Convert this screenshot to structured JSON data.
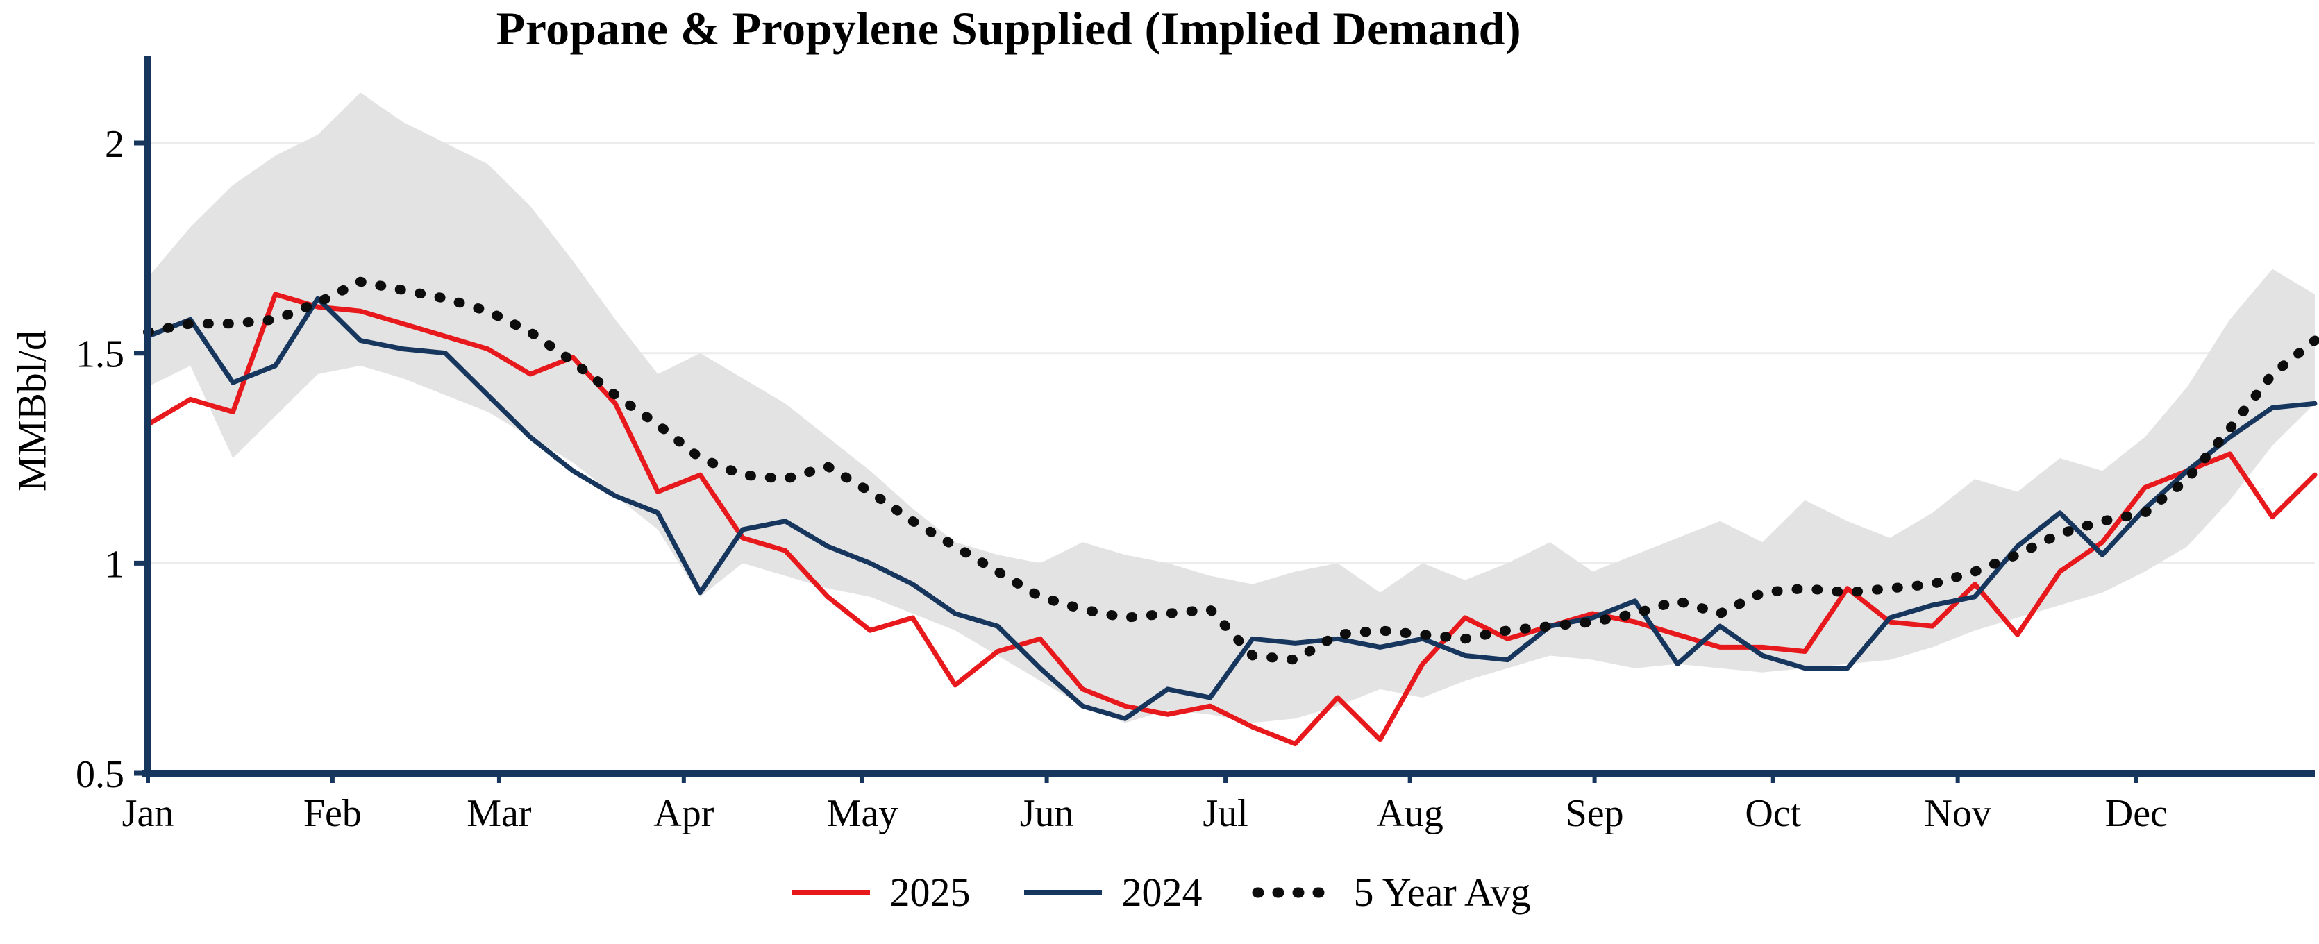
{
  "chart_data": {
    "type": "line",
    "title": "Propane & Propylene Supplied (Implied Demand)",
    "ylabel": "MMBbl/d",
    "xlabel": "",
    "ylim": [
      0.5,
      2.2
    ],
    "yticks": [
      0.5,
      1,
      1.5,
      2
    ],
    "ytick_labels": [
      "0.5",
      "1",
      "1.5",
      "2"
    ],
    "grid": true,
    "legend_position": "bottom-center",
    "axis_color": "#17365d",
    "x_unit": "week",
    "n_points": 52,
    "months": [
      "Jan",
      "Feb",
      "Mar",
      "Apr",
      "May",
      "Jun",
      "Jul",
      "Aug",
      "Sep",
      "Oct",
      "Nov",
      "Dec"
    ],
    "month_fractions": [
      0,
      0.0852,
      0.1621,
      0.2473,
      0.3297,
      0.4148,
      0.4973,
      0.5824,
      0.6676,
      0.75,
      0.8352,
      0.9176
    ],
    "band": {
      "color": "#e3e3e3",
      "upper": [
        1.68,
        1.8,
        1.9,
        1.97,
        2.02,
        2.12,
        2.05,
        2.0,
        1.95,
        1.85,
        1.72,
        1.58,
        1.45,
        1.5,
        1.44,
        1.38,
        1.3,
        1.22,
        1.13,
        1.05,
        1.02,
        1.0,
        1.05,
        1.02,
        1.0,
        0.97,
        0.95,
        0.98,
        1.0,
        0.93,
        1.0,
        0.96,
        1.0,
        1.05,
        0.98,
        1.02,
        1.06,
        1.1,
        1.05,
        1.15,
        1.1,
        1.06,
        1.12,
        1.2,
        1.17,
        1.25,
        1.22,
        1.3,
        1.42,
        1.58,
        1.7,
        1.64
      ],
      "lower": [
        1.42,
        1.47,
        1.25,
        1.35,
        1.45,
        1.47,
        1.44,
        1.4,
        1.36,
        1.3,
        1.24,
        1.16,
        1.08,
        0.92,
        1.0,
        0.97,
        0.94,
        0.92,
        0.88,
        0.84,
        0.78,
        0.72,
        0.66,
        0.62,
        0.65,
        0.64,
        0.62,
        0.63,
        0.66,
        0.7,
        0.68,
        0.72,
        0.75,
        0.78,
        0.77,
        0.75,
        0.76,
        0.75,
        0.74,
        0.75,
        0.76,
        0.77,
        0.8,
        0.84,
        0.87,
        0.9,
        0.93,
        0.98,
        1.04,
        1.15,
        1.28,
        1.38
      ]
    },
    "series": [
      {
        "name": "2025",
        "color": "#e8191c",
        "style": "solid",
        "values": [
          1.33,
          1.39,
          1.36,
          1.64,
          1.61,
          1.6,
          1.57,
          1.54,
          1.51,
          1.45,
          1.49,
          1.38,
          1.17,
          1.21,
          1.06,
          1.03,
          0.92,
          0.84,
          0.87,
          0.71,
          0.79,
          0.82,
          0.7,
          0.66,
          0.64,
          0.66,
          0.61,
          0.57,
          0.68,
          0.58,
          0.76,
          0.87,
          0.82,
          0.85,
          0.88,
          0.86,
          0.83,
          0.8,
          0.8,
          0.79,
          0.94,
          0.86,
          0.85,
          0.95,
          0.83,
          0.98,
          1.05,
          1.18,
          1.22,
          1.26,
          1.11,
          1.21
        ]
      },
      {
        "name": "2024",
        "color": "#17365d",
        "style": "solid",
        "values": [
          1.54,
          1.58,
          1.43,
          1.47,
          1.63,
          1.53,
          1.51,
          1.5,
          1.4,
          1.3,
          1.22,
          1.16,
          1.12,
          0.93,
          1.08,
          1.1,
          1.04,
          1.0,
          0.95,
          0.88,
          0.85,
          0.75,
          0.66,
          0.63,
          0.7,
          0.68,
          0.82,
          0.81,
          0.82,
          0.8,
          0.82,
          0.78,
          0.77,
          0.85,
          0.87,
          0.91,
          0.76,
          0.85,
          0.78,
          0.75,
          0.75,
          0.87,
          0.9,
          0.92,
          1.04,
          1.12,
          1.02,
          1.13,
          1.22,
          1.3,
          1.37,
          1.38
        ]
      },
      {
        "name": "5 Year Avg",
        "color": "#0d0d0d",
        "style": "dotted",
        "values": [
          1.55,
          1.57,
          1.57,
          1.58,
          1.62,
          1.67,
          1.65,
          1.63,
          1.6,
          1.55,
          1.48,
          1.4,
          1.33,
          1.25,
          1.21,
          1.2,
          1.23,
          1.17,
          1.1,
          1.04,
          0.98,
          0.92,
          0.89,
          0.87,
          0.88,
          0.89,
          0.78,
          0.77,
          0.83,
          0.84,
          0.83,
          0.82,
          0.84,
          0.85,
          0.86,
          0.88,
          0.91,
          0.88,
          0.93,
          0.94,
          0.93,
          0.94,
          0.95,
          0.98,
          1.02,
          1.07,
          1.1,
          1.12,
          1.2,
          1.32,
          1.45,
          1.53
        ]
      }
    ]
  }
}
